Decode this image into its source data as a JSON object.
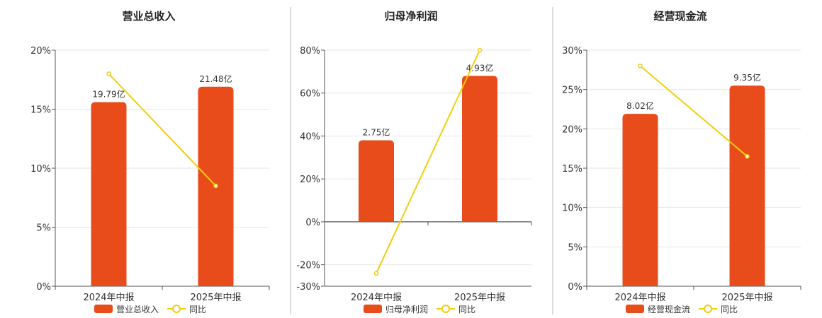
{
  "colors": {
    "bar": "#E84C1A",
    "line": "#F2CE0F",
    "grid": "#E6E6E6",
    "axis": "#555555",
    "divider": "#BBBBBB"
  },
  "legend_yoy": "同比",
  "chart_data": [
    {
      "type": "bar",
      "title": "营业总收入",
      "categories": [
        "2024年中报",
        "2025年中报"
      ],
      "series": [
        {
          "name": "营业总收入",
          "kind": "bar",
          "values": [
            15.6,
            16.9
          ],
          "labels": [
            "19.79亿",
            "21.48亿"
          ]
        },
        {
          "name": "同比",
          "kind": "line",
          "values": [
            18.0,
            8.5
          ]
        }
      ],
      "yticks": [
        "0%",
        "5%",
        "10%",
        "15%",
        "20%"
      ],
      "ylim": [
        0,
        20
      ],
      "grid": true,
      "legend": "bottom"
    },
    {
      "type": "bar",
      "title": "归母净利润",
      "categories": [
        "2024年中报",
        "2025年中报"
      ],
      "series": [
        {
          "name": "归母净利润",
          "kind": "bar",
          "values": [
            38,
            68
          ],
          "labels": [
            "2.75亿",
            "4.93亿"
          ]
        },
        {
          "name": "同比",
          "kind": "line",
          "values": [
            -24,
            80
          ]
        }
      ],
      "yticks": [
        "-30%",
        "-20%",
        "0%",
        "20%",
        "40%",
        "60%",
        "80%"
      ],
      "ylim": [
        -30,
        80
      ],
      "grid": true,
      "legend": "bottom"
    },
    {
      "type": "bar",
      "title": "经营现金流",
      "categories": [
        "2024年中报",
        "2025年中报"
      ],
      "series": [
        {
          "name": "经营现金流",
          "kind": "bar",
          "values": [
            21.9,
            25.5
          ],
          "labels": [
            "8.02亿",
            "9.35亿"
          ]
        },
        {
          "name": "同比",
          "kind": "line",
          "values": [
            28.0,
            16.5
          ]
        }
      ],
      "yticks": [
        "0%",
        "5%",
        "10%",
        "15%",
        "20%",
        "25%",
        "30%"
      ],
      "ylim": [
        0,
        30
      ],
      "grid": true,
      "legend": "bottom"
    }
  ]
}
